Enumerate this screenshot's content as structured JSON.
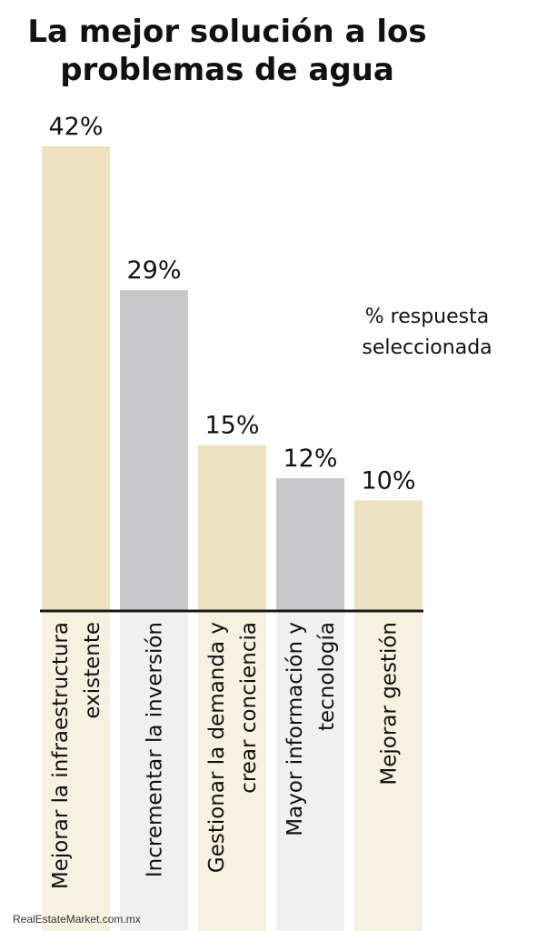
{
  "chart_data": {
    "type": "bar",
    "title": "La mejor solución a los problemas de agua",
    "subtitle": "% respuesta\nseleccionada",
    "categories": [
      [
        "Mejorar la infraestructura",
        "existente"
      ],
      [
        "Incrementar la inversión"
      ],
      [
        "Gestionar la demanda y",
        "crear conciencia"
      ],
      [
        "Mayor información y",
        "tecnología"
      ],
      [
        "Mejorar gestión"
      ]
    ],
    "values": [
      42,
      29,
      15,
      12,
      10
    ],
    "value_labels": [
      "42%",
      "29%",
      "15%",
      "12%",
      "10%"
    ],
    "bar_colors": [
      "#efe2c1",
      "#c7c7c9",
      "#efe2c1",
      "#c7c7c9",
      "#efe2c1"
    ],
    "label_band_colors": [
      "#f7f1e2",
      "#f0f0f0",
      "#f7f1e2",
      "#f0f0f0",
      "#f7f1e2"
    ],
    "baseline_color": "#1a1a1a",
    "xlabel": "",
    "ylabel": "",
    "ylim": [
      0,
      42
    ],
    "grid": false
  },
  "credit": "RealEstateMarket.com.mx"
}
